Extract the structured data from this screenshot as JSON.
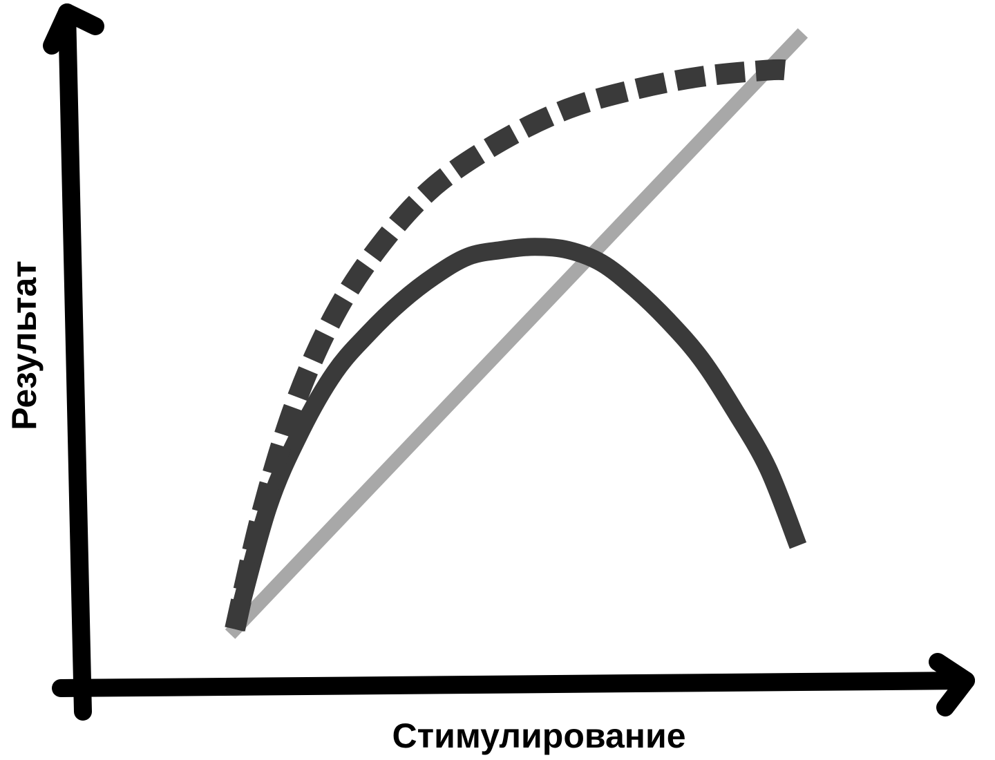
{
  "chart_data": {
    "type": "line",
    "xlabel": "Стимулирование",
    "ylabel": "Результат",
    "xlim": [
      0,
      10
    ],
    "ylim": [
      0,
      10
    ],
    "grid": false,
    "legend": "none",
    "series": [
      {
        "style": "dashed",
        "color": "#3a3a3a",
        "x": [
          0,
          0.4,
          0.9,
          1.5,
          2.2,
          3.0,
          4.0,
          5.0,
          6.0,
          7.0,
          8.0,
          8.3
        ],
        "y": [
          0.8,
          2.6,
          4.3,
          5.7,
          6.8,
          7.7,
          8.4,
          8.9,
          9.2,
          9.4,
          9.5,
          9.5
        ]
      },
      {
        "style": "solid",
        "color": "#3a3a3a",
        "x": [
          0,
          0.5,
          1.0,
          1.5,
          2.0,
          2.5,
          3.0,
          3.5,
          4.0,
          4.5,
          5.0,
          5.5,
          6.0,
          6.5,
          7.0,
          7.5,
          8.0,
          8.45
        ],
        "y": [
          0.8,
          2.7,
          3.9,
          4.8,
          5.4,
          5.9,
          6.3,
          6.6,
          6.7,
          6.75,
          6.7,
          6.5,
          6.1,
          5.6,
          5.0,
          4.2,
          3.3,
          2.1
        ]
      },
      {
        "style": "solid",
        "color": "#a8a8a8",
        "x": [
          0,
          8.45
        ],
        "y": [
          0.8,
          10
        ]
      }
    ]
  }
}
